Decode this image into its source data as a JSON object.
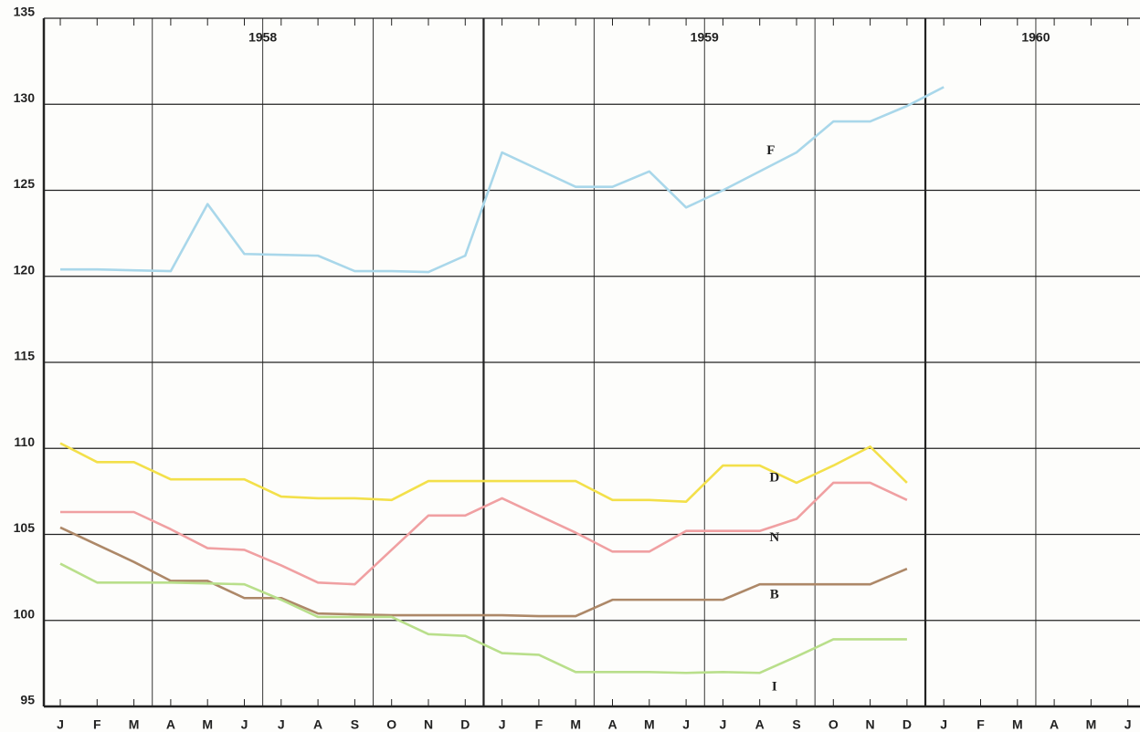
{
  "chart_data": {
    "type": "line",
    "annotations": [
      "1958",
      "1959",
      "1960"
    ],
    "categories": [
      "J",
      "F",
      "M",
      "A",
      "M",
      "J",
      "J",
      "A",
      "S",
      "O",
      "N",
      "D",
      "J",
      "F",
      "M",
      "A",
      "M",
      "J",
      "J",
      "A",
      "S",
      "O",
      "N",
      "D",
      "J",
      "F",
      "M",
      "A",
      "M",
      "J"
    ],
    "series": [
      {
        "name": "F",
        "color": "#a9d7ea",
        "values": [
          120.4,
          120.4,
          120.35,
          120.3,
          124.2,
          121.3,
          121.25,
          121.2,
          120.3,
          120.3,
          120.25,
          121.2,
          127.2,
          126.2,
          125.2,
          125.2,
          126.1,
          124.0,
          125.0,
          126.1,
          127.2,
          129.0,
          129.0,
          129.9,
          131.0,
          null,
          null,
          null,
          null,
          null
        ]
      },
      {
        "name": "D",
        "color": "#f3e04a",
        "values": [
          110.3,
          109.2,
          109.2,
          108.2,
          108.2,
          108.2,
          107.2,
          107.1,
          107.1,
          107.0,
          108.1,
          108.1,
          108.1,
          108.1,
          108.1,
          107.0,
          107.0,
          106.9,
          109.0,
          109.0,
          108.0,
          109.0,
          110.1,
          108.0,
          null,
          null,
          null,
          null,
          null,
          null
        ]
      },
      {
        "name": "N",
        "color": "#f0a0a2",
        "values": [
          106.3,
          106.3,
          106.3,
          105.3,
          104.2,
          104.1,
          103.2,
          102.2,
          102.1,
          104.1,
          106.1,
          106.1,
          107.1,
          106.1,
          105.1,
          104.0,
          104.0,
          105.2,
          105.2,
          105.2,
          105.9,
          108.0,
          108.0,
          107.0,
          null,
          null,
          null,
          null,
          null,
          null
        ]
      },
      {
        "name": "B",
        "color": "#ad8868",
        "values": [
          105.4,
          104.4,
          103.4,
          102.3,
          102.3,
          101.3,
          101.3,
          100.4,
          100.35,
          100.3,
          100.3,
          100.3,
          100.3,
          100.25,
          100.25,
          101.2,
          101.2,
          101.2,
          101.2,
          102.1,
          102.1,
          102.1,
          102.1,
          103.0,
          null,
          null,
          null,
          null,
          null,
          null
        ]
      },
      {
        "name": "I",
        "color": "#b9df8b",
        "values": [
          103.3,
          102.2,
          102.2,
          102.2,
          102.15,
          102.1,
          101.2,
          100.2,
          100.2,
          100.2,
          99.2,
          99.1,
          98.1,
          98.0,
          97.0,
          97.0,
          97.0,
          96.95,
          97.0,
          96.95,
          97.9,
          98.9,
          98.9,
          98.9,
          null,
          null,
          null,
          null,
          null,
          null
        ]
      }
    ],
    "ylim": [
      95,
      135
    ],
    "yticks": [
      95,
      100,
      105,
      110,
      115,
      120,
      125,
      130,
      135
    ],
    "grid": true
  }
}
